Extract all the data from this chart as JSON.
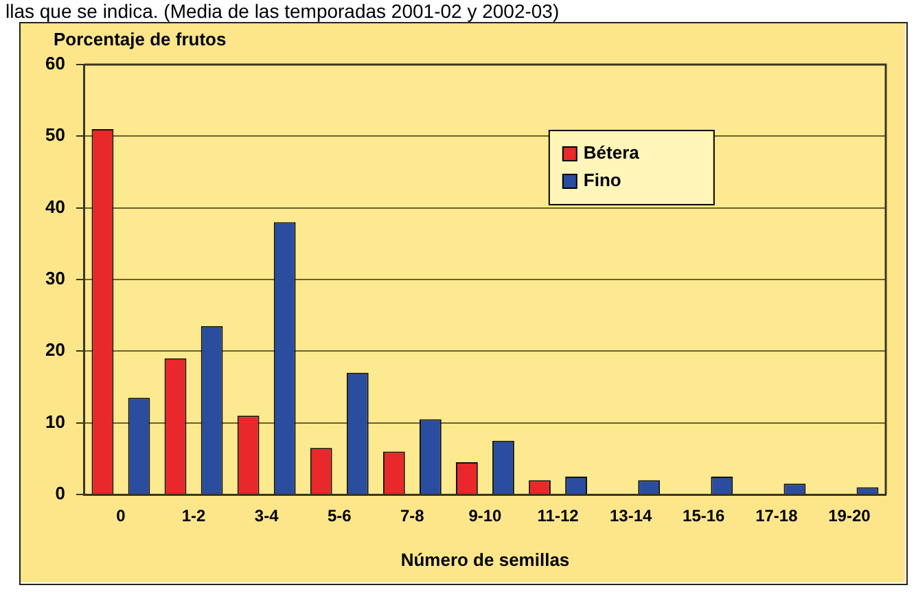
{
  "chart_data": {
    "type": "bar",
    "annotations": [
      "llas que se indica. (Media de las temporadas 2001-02 y 2002-03)"
    ],
    "ylabel": "Porcentaje de frutos",
    "xlabel": "Número de semillas",
    "categories": [
      "0",
      "1-2",
      "3-4",
      "5-6",
      "7-8",
      "9-10",
      "11-12",
      "13-14",
      "15-16",
      "17-18",
      "19-20"
    ],
    "series": [
      {
        "name": "Bétera",
        "color": "#e8282a",
        "values": [
          51,
          19,
          11,
          6.5,
          6,
          4.5,
          2,
          0,
          0,
          0,
          0
        ]
      },
      {
        "name": "Fino",
        "color": "#2a4da0",
        "values": [
          13.5,
          23.5,
          38,
          17,
          10.5,
          7.5,
          2.5,
          2,
          2.5,
          1.5,
          1
        ]
      }
    ],
    "ylim": [
      0,
      60
    ],
    "yticks": [
      0,
      10,
      20,
      30,
      40,
      50,
      60
    ],
    "grid": "y",
    "legend": "top right"
  }
}
